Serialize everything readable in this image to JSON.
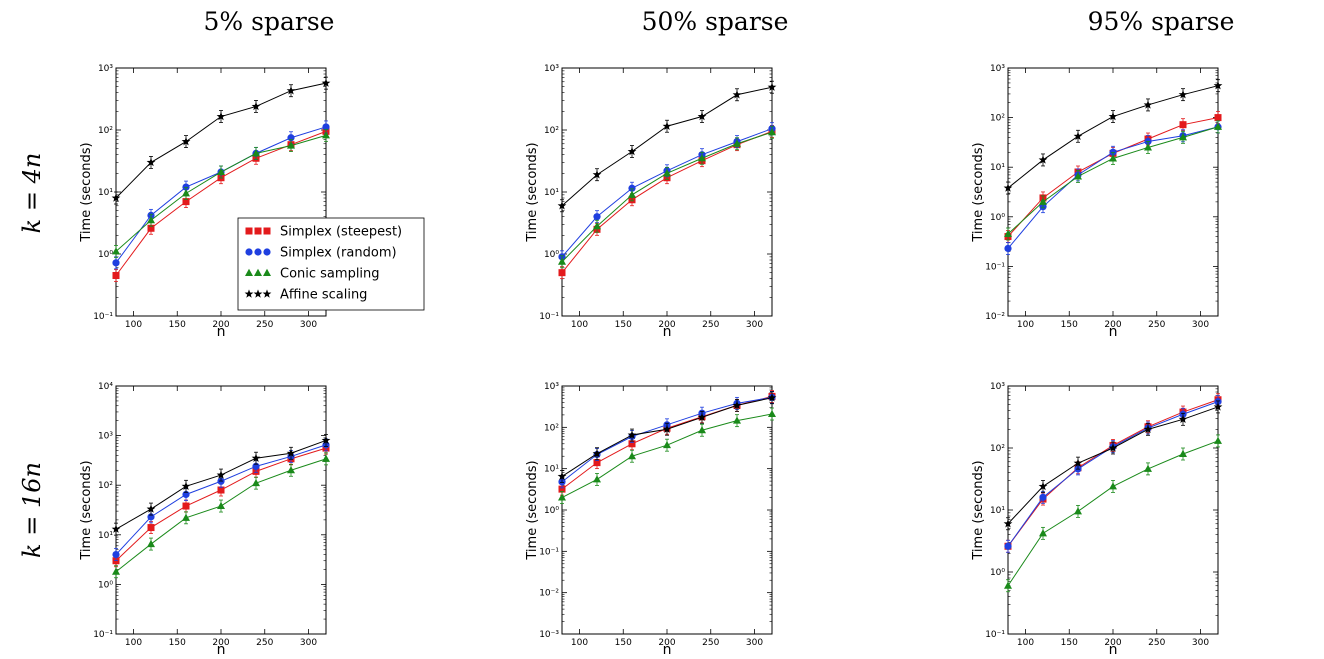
{
  "column_titles": [
    "5% sparse",
    "50% sparse",
    "95% sparse"
  ],
  "row_labels": [
    "k = 4n",
    "k = 16n"
  ],
  "legend": {
    "location": "lower-right of top-left panel",
    "entries": [
      "Simplex (steepest)",
      "Simplex (random)",
      "Conic sampling",
      "Affine scaling"
    ]
  },
  "colors": {
    "steepest": "#e31a1c",
    "random": "#1f3fe0",
    "conic": "#1a8a1a",
    "affine": "#000000"
  },
  "chart_data": [
    {
      "type": "line",
      "panel": "k=4n, 5% sparse",
      "xlabel": "n",
      "ylabel": "Time (seconds)",
      "xticks": [
        100,
        150,
        200,
        250,
        300
      ],
      "xlim": [
        80,
        320
      ],
      "yscale": "log",
      "ylim": [
        0.1,
        1000
      ],
      "ytick_exps": [
        -1,
        0,
        1,
        2,
        3
      ],
      "x": [
        80,
        120,
        160,
        200,
        240,
        280,
        320
      ],
      "series": [
        {
          "name": "Simplex (steepest)",
          "marker": "square",
          "values": [
            0.45,
            2.6,
            7,
            17,
            35,
            58,
            95
          ]
        },
        {
          "name": "Simplex (random)",
          "marker": "circle",
          "values": [
            0.72,
            4.2,
            12,
            21,
            42,
            75,
            112
          ]
        },
        {
          "name": "Conic sampling",
          "marker": "triangle",
          "values": [
            1.1,
            3.5,
            9.5,
            21,
            42,
            56,
            82
          ]
        },
        {
          "name": "Affine scaling",
          "marker": "star",
          "values": [
            8,
            30,
            65,
            165,
            240,
            430,
            570
          ]
        }
      ]
    },
    {
      "type": "line",
      "panel": "k=4n, 50% sparse",
      "xlabel": "n",
      "ylabel": "Time (seconds)",
      "xticks": [
        100,
        150,
        200,
        250,
        300
      ],
      "xlim": [
        80,
        320
      ],
      "yscale": "log",
      "ylim": [
        0.1,
        1000
      ],
      "ytick_exps": [
        -1,
        0,
        1,
        2,
        3
      ],
      "x": [
        80,
        120,
        160,
        200,
        240,
        280,
        320
      ],
      "series": [
        {
          "name": "Simplex (steepest)",
          "marker": "square",
          "values": [
            0.5,
            2.5,
            7.5,
            17,
            32,
            58,
            95
          ]
        },
        {
          "name": "Simplex (random)",
          "marker": "circle",
          "values": [
            0.9,
            4,
            11.5,
            22,
            40,
            65,
            105
          ]
        },
        {
          "name": "Conic sampling",
          "marker": "triangle",
          "values": [
            0.75,
            2.8,
            9,
            20,
            35,
            60,
            92
          ]
        },
        {
          "name": "Affine scaling",
          "marker": "star",
          "values": [
            6,
            19,
            45,
            115,
            165,
            370,
            490
          ]
        }
      ]
    },
    {
      "type": "line",
      "panel": "k=4n, 95% sparse",
      "xlabel": "n",
      "ylabel": "Time (seconds)",
      "xticks": [
        100,
        150,
        200,
        250,
        300
      ],
      "xlim": [
        80,
        320
      ],
      "yscale": "log",
      "ylim": [
        0.01,
        1000
      ],
      "ytick_exps": [
        -2,
        -1,
        0,
        1,
        2,
        3
      ],
      "x": [
        80,
        120,
        160,
        200,
        240,
        280,
        320
      ],
      "series": [
        {
          "name": "Simplex (steepest)",
          "marker": "square",
          "values": [
            0.4,
            2.4,
            8,
            19,
            37,
            72,
            100
          ]
        },
        {
          "name": "Simplex (random)",
          "marker": "circle",
          "values": [
            0.23,
            1.6,
            7,
            20,
            33,
            43,
            65
          ]
        },
        {
          "name": "Conic sampling",
          "marker": "triangle",
          "values": [
            0.45,
            2,
            6.5,
            15,
            25,
            40,
            65
          ]
        },
        {
          "name": "Affine scaling",
          "marker": "star",
          "values": [
            3.8,
            14,
            42,
            105,
            180,
            290,
            440
          ]
        }
      ]
    },
    {
      "type": "line",
      "panel": "k=16n, 5% sparse",
      "xlabel": "n",
      "ylabel": "Time (seconds)",
      "xticks": [
        100,
        150,
        200,
        250,
        300
      ],
      "xlim": [
        80,
        320
      ],
      "yscale": "log",
      "ylim": [
        0.1,
        10000
      ],
      "ytick_exps": [
        -1,
        0,
        1,
        2,
        3,
        4
      ],
      "x": [
        80,
        120,
        160,
        200,
        240,
        280,
        320
      ],
      "series": [
        {
          "name": "Simplex (steepest)",
          "marker": "square",
          "values": [
            3,
            14,
            38,
            80,
            190,
            340,
            560
          ]
        },
        {
          "name": "Simplex (random)",
          "marker": "circle",
          "values": [
            4,
            23,
            65,
            120,
            240,
            380,
            650
          ]
        },
        {
          "name": "Conic sampling",
          "marker": "triangle",
          "values": [
            1.8,
            6.5,
            22,
            38,
            110,
            200,
            340
          ]
        },
        {
          "name": "Affine scaling",
          "marker": "star",
          "values": [
            13,
            33,
            95,
            160,
            350,
            440,
            800
          ]
        }
      ]
    },
    {
      "type": "line",
      "panel": "k=16n, 50% sparse",
      "xlabel": "n",
      "ylabel": "Time (seconds)",
      "xticks": [
        100,
        150,
        200,
        250,
        300
      ],
      "xlim": [
        80,
        320
      ],
      "yscale": "log",
      "ylim": [
        0.001,
        1000
      ],
      "ytick_exps": [
        -3,
        -2,
        -1,
        0,
        1,
        2,
        3
      ],
      "x": [
        80,
        120,
        160,
        200,
        240,
        280,
        320
      ],
      "series": [
        {
          "name": "Simplex (steepest)",
          "marker": "square",
          "values": [
            3.2,
            14,
            40,
            95,
            180,
            340,
            560
          ]
        },
        {
          "name": "Simplex (random)",
          "marker": "circle",
          "values": [
            4.8,
            22,
            60,
            115,
            220,
            380,
            530
          ]
        },
        {
          "name": "Conic sampling",
          "marker": "triangle",
          "values": [
            2,
            5.5,
            20,
            37,
            85,
            145,
            210
          ]
        },
        {
          "name": "Affine scaling",
          "marker": "star",
          "values": [
            6.5,
            23,
            65,
            90,
            175,
            340,
            520
          ]
        }
      ]
    },
    {
      "type": "line",
      "panel": "k=16n, 95% sparse",
      "xlabel": "n",
      "ylabel": "Time (seconds)",
      "xticks": [
        100,
        150,
        200,
        250,
        300
      ],
      "xlim": [
        80,
        320
      ],
      "yscale": "log",
      "ylim": [
        0.1,
        1000
      ],
      "ytick_exps": [
        -1,
        0,
        1,
        2,
        3
      ],
      "x": [
        80,
        120,
        160,
        200,
        240,
        280,
        320
      ],
      "series": [
        {
          "name": "Simplex (steepest)",
          "marker": "square",
          "values": [
            2.6,
            15,
            48,
            110,
            220,
            380,
            600
          ]
        },
        {
          "name": "Simplex (random)",
          "marker": "circle",
          "values": [
            2.6,
            16,
            46,
            105,
            210,
            350,
            560
          ]
        },
        {
          "name": "Conic sampling",
          "marker": "triangle",
          "values": [
            0.6,
            4.2,
            9.5,
            24,
            46,
            80,
            130
          ]
        },
        {
          "name": "Affine scaling",
          "marker": "star",
          "values": [
            6,
            24,
            57,
            100,
            200,
            290,
            460
          ]
        }
      ]
    }
  ]
}
